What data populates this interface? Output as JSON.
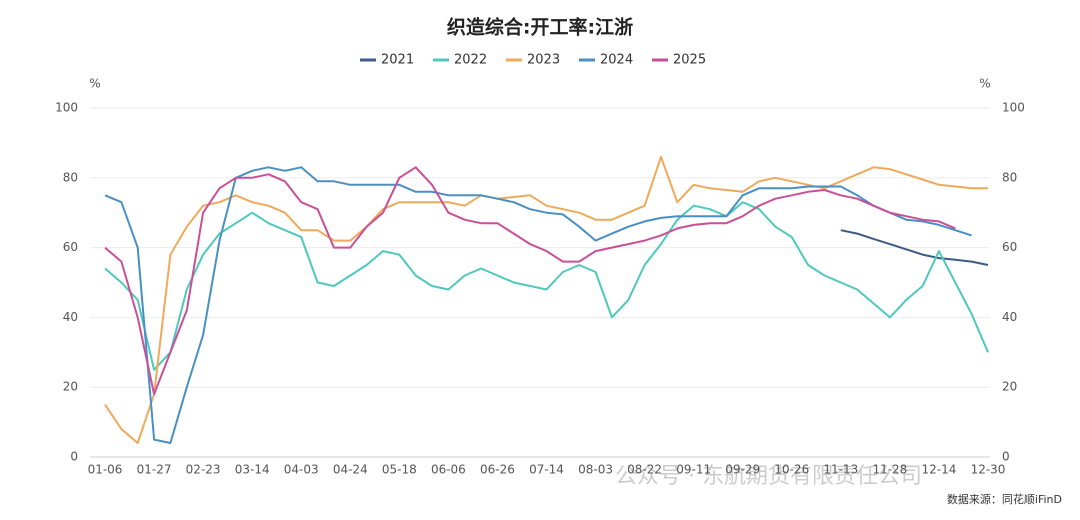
{
  "chart_data": {
    "type": "line",
    "title": "织造综合:开工率:江浙",
    "y_unit": "%",
    "y2_unit": "%",
    "source": "数据来源：同花顺iFinD",
    "watermark": "公众号 · 东航期货有限责任公司",
    "categories": [
      "01-06",
      null,
      null,
      "01-27",
      null,
      null,
      "02-23",
      null,
      null,
      "03-14",
      null,
      null,
      "04-03",
      null,
      null,
      "04-24",
      null,
      null,
      "05-18",
      null,
      null,
      "06-06",
      null,
      null,
      "06-26",
      null,
      null,
      "07-14",
      null,
      null,
      "08-03",
      null,
      null,
      "08-22",
      null,
      null,
      "09-11",
      null,
      null,
      "09-29",
      null,
      null,
      "10-26",
      null,
      null,
      "11-13",
      null,
      null,
      "11-28",
      null,
      null,
      "12-14",
      null,
      null,
      "12-30"
    ],
    "ylim": [
      0,
      100
    ],
    "yticks": [
      0,
      20,
      40,
      60,
      80,
      100
    ],
    "y2lim": [
      0,
      100
    ],
    "y2ticks": [
      0,
      20,
      40,
      60,
      80,
      100
    ],
    "grid": true,
    "legend": "top",
    "series": [
      {
        "name": "2021",
        "color": "#3b5b85",
        "values": [
          null,
          null,
          null,
          null,
          null,
          null,
          null,
          null,
          null,
          null,
          null,
          null,
          null,
          null,
          null,
          null,
          null,
          null,
          null,
          null,
          null,
          null,
          null,
          null,
          null,
          null,
          null,
          null,
          null,
          null,
          null,
          null,
          null,
          null,
          null,
          null,
          null,
          null,
          null,
          null,
          null,
          null,
          null,
          null,
          null,
          65,
          64,
          62.5,
          61,
          59.5,
          58,
          57,
          56.5,
          56,
          55
        ]
      },
      {
        "name": "2022",
        "color": "#4ec8bd",
        "values": [
          54,
          50,
          45,
          25,
          30,
          48,
          58,
          64,
          67,
          70,
          67,
          65,
          63,
          50,
          49,
          52,
          55,
          59,
          58,
          52,
          49,
          48,
          52,
          54,
          52,
          50,
          49,
          48,
          53,
          55,
          53,
          40,
          45,
          55,
          61,
          68,
          72,
          71,
          69,
          73,
          71,
          66,
          63,
          55,
          52,
          50,
          48,
          44,
          40,
          45,
          49,
          59,
          50,
          41,
          30
        ]
      },
      {
        "name": "2023",
        "color": "#f0a95a",
        "values": [
          15,
          8,
          4,
          18,
          58,
          66,
          72,
          73,
          75,
          73,
          72,
          70,
          65,
          65,
          62,
          62,
          66,
          71,
          73,
          73,
          73,
          73,
          72,
          75,
          74,
          74.5,
          75,
          72,
          71,
          70,
          68,
          68,
          70,
          72,
          86,
          73,
          78,
          77,
          76.5,
          76,
          79,
          80,
          79,
          78,
          77,
          79,
          81,
          83,
          82.5,
          81,
          79.5,
          78,
          77.5,
          77,
          77
        ]
      },
      {
        "name": "2024",
        "color": "#4a8fc2",
        "values": [
          75,
          73,
          60,
          5,
          4,
          20,
          35,
          62,
          80,
          82,
          83,
          82,
          83,
          79,
          79,
          78,
          78,
          78,
          78,
          76,
          76,
          75,
          75,
          75,
          74,
          73,
          71,
          70,
          69.5,
          66,
          62,
          64,
          66,
          67.5,
          68.5,
          69,
          69,
          69,
          69,
          75,
          77,
          77,
          77,
          77.5,
          77.5,
          77.5,
          75,
          72,
          70,
          68,
          67.5,
          66.5,
          65,
          63.5,
          null
        ]
      },
      {
        "name": "2025",
        "color": "#c94f98",
        "values": [
          60,
          56,
          40,
          18,
          30,
          42,
          70,
          77,
          80,
          80,
          81,
          79,
          73,
          71,
          60,
          60,
          66,
          70,
          80,
          83,
          78,
          70,
          68,
          67,
          67,
          64,
          61,
          59,
          56,
          56,
          59,
          60,
          61,
          62,
          63.5,
          65.5,
          66.5,
          67,
          67,
          69,
          72,
          74,
          75,
          76,
          76.5,
          75,
          74,
          72,
          70,
          69,
          68,
          67.5,
          65.5,
          null,
          null
        ]
      }
    ]
  }
}
